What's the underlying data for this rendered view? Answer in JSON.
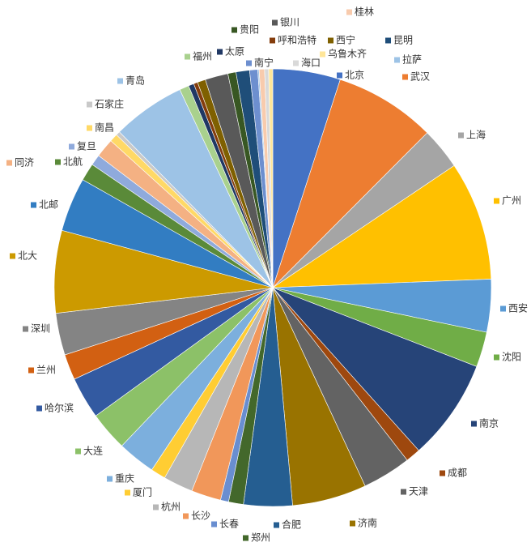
{
  "chart_data": {
    "type": "pie",
    "categories": [
      "北京",
      "武汉",
      "上海",
      "广州",
      "西安",
      "沈阳",
      "南京",
      "成都",
      "天津",
      "济南",
      "合肥",
      "郑州",
      "长春",
      "长沙",
      "杭州",
      "厦门",
      "重庆",
      "大连",
      "哈尔滨",
      "兰州",
      "深圳",
      "北大",
      "北邮",
      "北航",
      "复旦",
      "同济",
      "南昌",
      "石家庄",
      "青岛",
      "福州",
      "太原",
      "呼和浩特",
      "西宁",
      "银川",
      "贵阳",
      "昆明",
      "南宁",
      "拉萨",
      "桂林",
      "海口",
      "乌鲁木齐"
    ],
    "values": [
      5.0,
      7.5,
      3.1,
      8.8,
      3.9,
      2.6,
      7.5,
      1.1,
      3.6,
      5.5,
      3.6,
      1.1,
      0.6,
      2.2,
      2.2,
      1.1,
      2.8,
      2.9,
      3.1,
      1.9,
      3.1,
      6.1,
      4.0,
      1.3,
      0.8,
      1.4,
      0.6,
      0.3,
      5.4,
      0.7,
      0.4,
      0.3,
      0.6,
      1.7,
      0.6,
      1.0,
      0.6,
      0.1,
      0.4,
      0.3,
      0.3
    ],
    "colors": [
      "#4472c4",
      "#ed7d31",
      "#a5a5a5",
      "#ffc000",
      "#5b9bd5",
      "#70ad47",
      "#264478",
      "#9e480e",
      "#636363",
      "#997300",
      "#255e91",
      "#43682b",
      "#698ed0",
      "#f1975a",
      "#b7b7b7",
      "#ffcd33",
      "#7cafdd",
      "#8cc168",
      "#335aa1",
      "#d26012",
      "#848484",
      "#cc9a00",
      "#327dc2",
      "#5a8a39",
      "#8faadc",
      "#f4b183",
      "#ffd966",
      "#c9c9c9",
      "#9dc3e6",
      "#a9d18e",
      "#203864",
      "#843c0c",
      "#7f6000",
      "#595959",
      "#385723",
      "#1f4e79",
      "#6d8fcf",
      "#9dc3e6",
      "#f8cbad",
      "#d9d9d9",
      "#ffe699"
    ]
  }
}
